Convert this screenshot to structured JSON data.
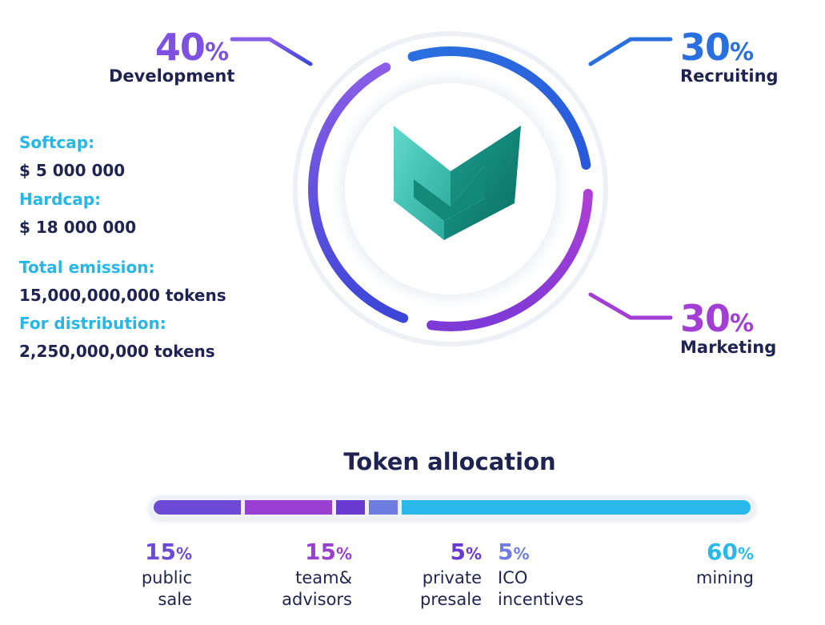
{
  "chart_data": [
    {
      "type": "pie",
      "slices": [
        {
          "label": "Development",
          "value": 40,
          "pct": "40",
          "sign": "%",
          "color": "#7d52e3"
        },
        {
          "label": "Recruiting",
          "value": 30,
          "pct": "30",
          "sign": "%",
          "color": "#2a6fdf"
        },
        {
          "label": "Marketing",
          "value": 30,
          "pct": "30",
          "sign": "%",
          "color": "#a23ed4"
        }
      ]
    },
    {
      "type": "bar",
      "title": "Token allocation",
      "segments": [
        {
          "value": 15,
          "pct": "15",
          "sign": "%",
          "line1": "public",
          "line2": "sale",
          "color": "#6c4ad6"
        },
        {
          "value": 15,
          "pct": "15",
          "sign": "%",
          "line1": "team&",
          "line2": "advisors",
          "color": "#9b3fd2"
        },
        {
          "value": 5,
          "pct": "5",
          "sign": "%",
          "line1": "private",
          "line2": "presale",
          "color": "#6a3ad0"
        },
        {
          "value": 5,
          "pct": "5",
          "sign": "%",
          "line1": "ICO",
          "line2": "incentives",
          "color": "#6f7de0"
        },
        {
          "value": 60,
          "pct": "60",
          "sign": "%",
          "line1": "mining",
          "line2": "",
          "color": "#2ab8ea"
        }
      ]
    }
  ],
  "info": {
    "softcap_label": "Softcap:",
    "softcap_value": "$ 5 000 000",
    "hardcap_label": "Hardcap:",
    "hardcap_value": "$ 18 000 000",
    "emission_label": "Total emission:",
    "emission_value": "15,000,000,000 tokens",
    "distribution_label": "For distribution:",
    "distribution_value": "2,250,000,000 tokens"
  },
  "colors": {
    "dark_text": "#1f2351",
    "cyan_text": "#27b7e6",
    "logo_light": "#4fd0c3",
    "logo_dark": "#0c7d70"
  }
}
